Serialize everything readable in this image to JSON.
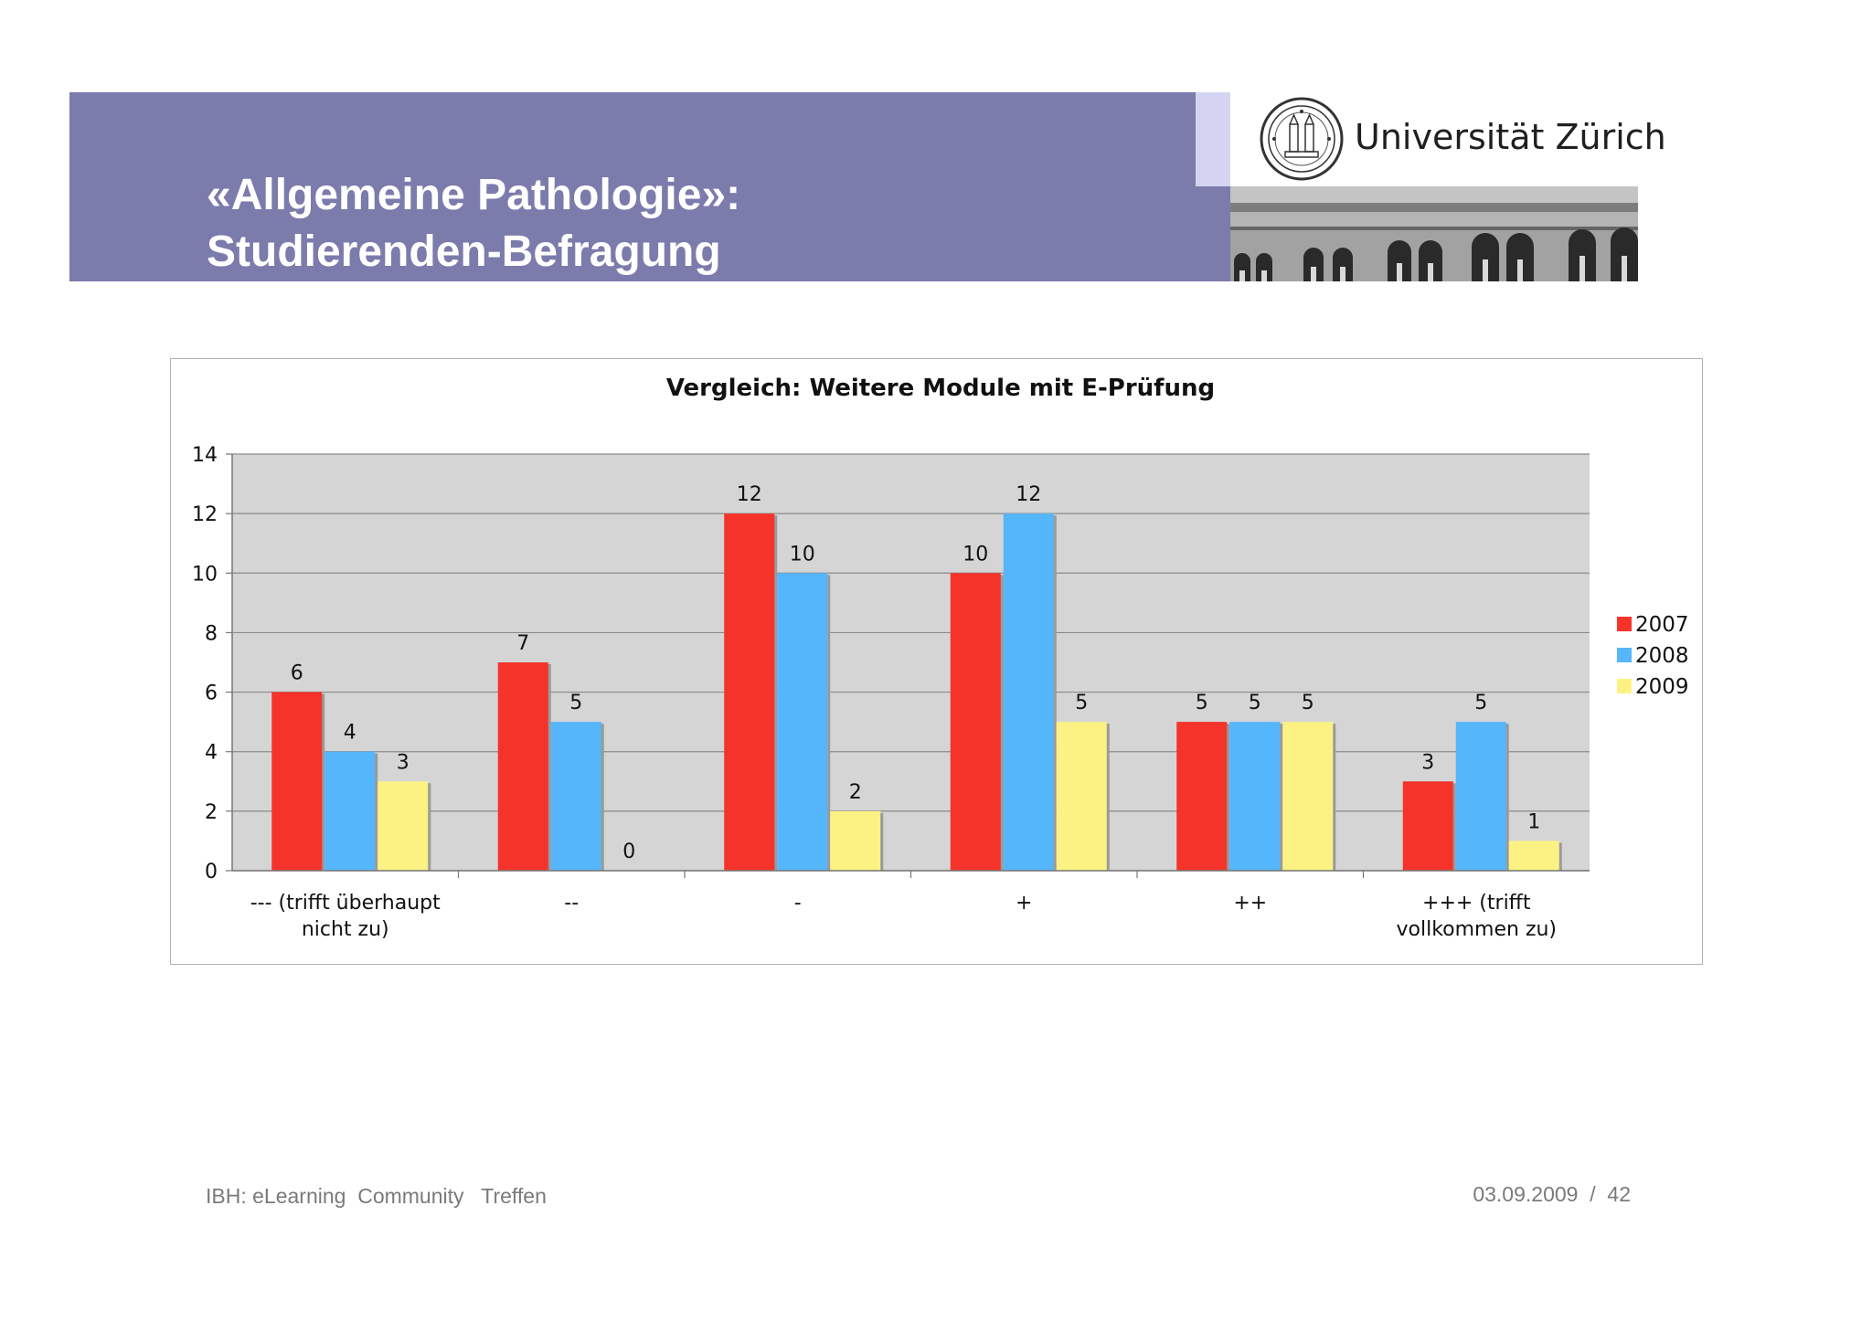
{
  "slide": {
    "title_line1": "«Allgemeine Pathologie»:",
    "title_line2": "Studierenden-Befragung",
    "university": "Universität Zürich",
    "footer_left": "IBH: eLearning  Community   Treffen",
    "footer_date": "03.09.2009",
    "footer_sep": "/",
    "footer_page": "42",
    "seal_icon": "university-seal-icon",
    "building_image": "university-building-image"
  },
  "chart_data": {
    "type": "bar",
    "title": "Vergleich: Weitere Module mit E-Prüfung",
    "categories": [
      [
        "--- (trifft überhaupt",
        "nicht zu)"
      ],
      [
        "--"
      ],
      [
        "-"
      ],
      [
        "+"
      ],
      [
        "++"
      ],
      [
        "+++ (trifft",
        "vollkommen zu)"
      ]
    ],
    "series": [
      {
        "name": "2007",
        "color": "#f5332a",
        "values": [
          6,
          7,
          12,
          10,
          5,
          3
        ]
      },
      {
        "name": "2008",
        "color": "#56b6fb",
        "values": [
          4,
          5,
          10,
          12,
          5,
          5
        ]
      },
      {
        "name": "2009",
        "color": "#fcf283",
        "values": [
          3,
          0,
          2,
          5,
          5,
          1
        ]
      }
    ],
    "ylim": [
      0,
      14
    ],
    "yticks": [
      0,
      2,
      4,
      6,
      8,
      10,
      12,
      14
    ],
    "grid": true,
    "legend": "right",
    "plot_background": "#d5d5d5"
  }
}
